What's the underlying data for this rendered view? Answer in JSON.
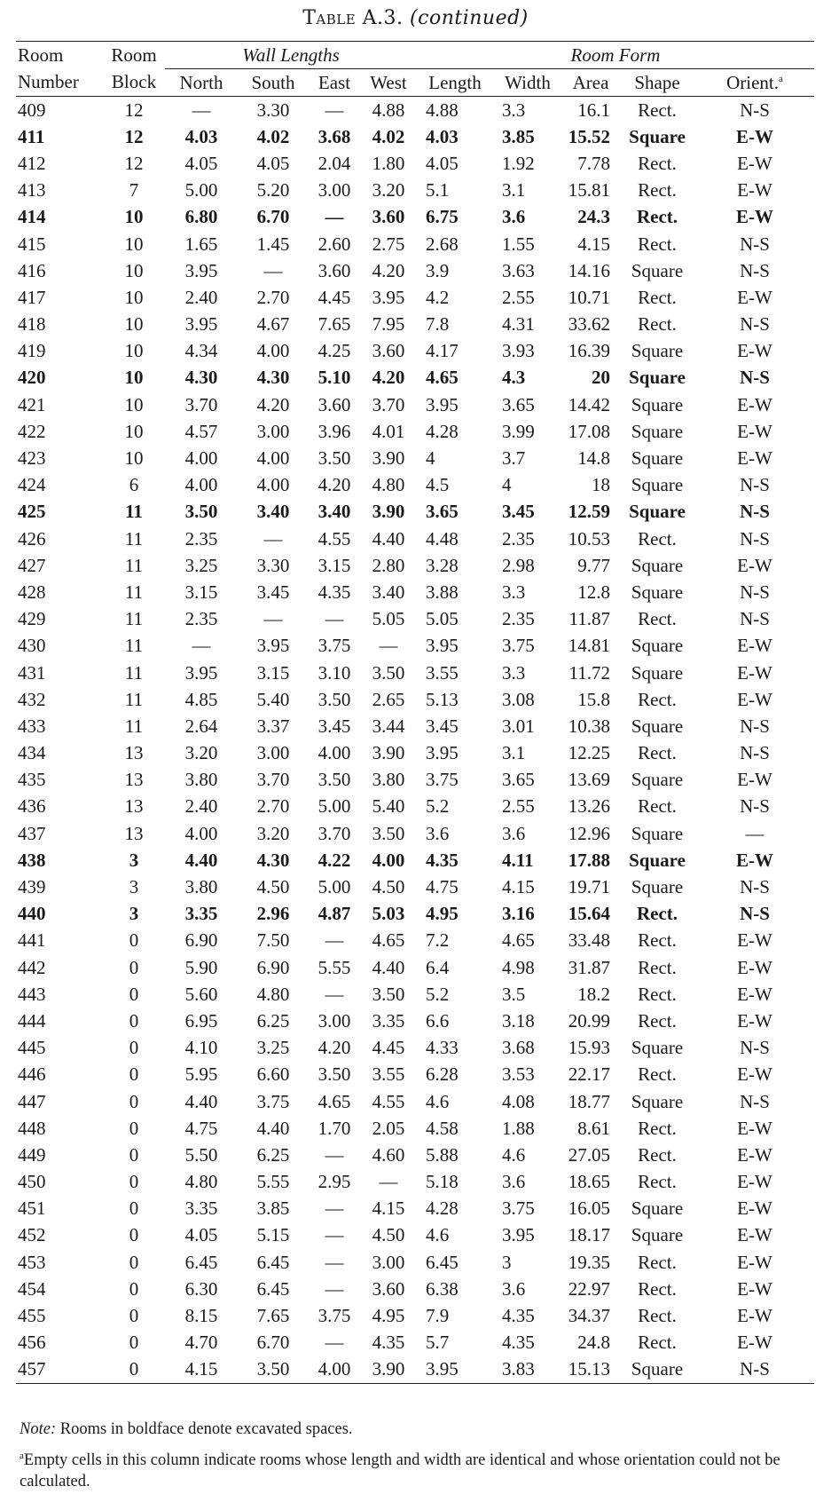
{
  "title": {
    "label": "Table A.3.",
    "continued": "(continued)"
  },
  "headers": {
    "room": "Room",
    "number": "Number",
    "block": "Block",
    "wall_group": "Wall Lengths",
    "form_group": "Room Form",
    "north": "North",
    "south": "South",
    "east": "East",
    "west": "West",
    "length": "Length",
    "width": "Width",
    "area": "Area",
    "shape": "Shape",
    "orient": "Orient.",
    "orient_mark": "a"
  },
  "rows": [
    {
      "room": "409",
      "block": "12",
      "north": "—",
      "south": "3.30",
      "east": "—",
      "west": "4.88",
      "length": "4.88",
      "width": "3.3",
      "area": "16.1",
      "shape": "Rect.",
      "orient": "N-S",
      "bold": false
    },
    {
      "room": "411",
      "block": "12",
      "north": "4.03",
      "south": "4.02",
      "east": "3.68",
      "west": "4.02",
      "length": "4.03",
      "width": "3.85",
      "area": "15.52",
      "shape": "Square",
      "orient": "E-W",
      "bold": true
    },
    {
      "room": "412",
      "block": "12",
      "north": "4.05",
      "south": "4.05",
      "east": "2.04",
      "west": "1.80",
      "length": "4.05",
      "width": "1.92",
      "area": "7.78",
      "shape": "Rect.",
      "orient": "E-W",
      "bold": false
    },
    {
      "room": "413",
      "block": "7",
      "north": "5.00",
      "south": "5.20",
      "east": "3.00",
      "west": "3.20",
      "length": "5.1",
      "width": "3.1",
      "area": "15.81",
      "shape": "Rect.",
      "orient": "E-W",
      "bold": false
    },
    {
      "room": "414",
      "block": "10",
      "north": "6.80",
      "south": "6.70",
      "east": "—",
      "west": "3.60",
      "length": "6.75",
      "width": "3.6",
      "area": "24.3",
      "shape": "Rect.",
      "orient": "E-W",
      "bold": true
    },
    {
      "room": "415",
      "block": "10",
      "north": "1.65",
      "south": "1.45",
      "east": "2.60",
      "west": "2.75",
      "length": "2.68",
      "width": "1.55",
      "area": "4.15",
      "shape": "Rect.",
      "orient": "N-S",
      "bold": false
    },
    {
      "room": "416",
      "block": "10",
      "north": "3.95",
      "south": "—",
      "east": "3.60",
      "west": "4.20",
      "length": "3.9",
      "width": "3.63",
      "area": "14.16",
      "shape": "Square",
      "orient": "N-S",
      "bold": false
    },
    {
      "room": "417",
      "block": "10",
      "north": "2.40",
      "south": "2.70",
      "east": "4.45",
      "west": "3.95",
      "length": "4.2",
      "width": "2.55",
      "area": "10.71",
      "shape": "Rect.",
      "orient": "E-W",
      "bold": false
    },
    {
      "room": "418",
      "block": "10",
      "north": "3.95",
      "south": "4.67",
      "east": "7.65",
      "west": "7.95",
      "length": "7.8",
      "width": "4.31",
      "area": "33.62",
      "shape": "Rect.",
      "orient": "N-S",
      "bold": false
    },
    {
      "room": "419",
      "block": "10",
      "north": "4.34",
      "south": "4.00",
      "east": "4.25",
      "west": "3.60",
      "length": "4.17",
      "width": "3.93",
      "area": "16.39",
      "shape": "Square",
      "orient": "E-W",
      "bold": false
    },
    {
      "room": "420",
      "block": "10",
      "north": "4.30",
      "south": "4.30",
      "east": "5.10",
      "west": "4.20",
      "length": "4.65",
      "width": "4.3",
      "area": "20",
      "shape": "Square",
      "orient": "N-S",
      "bold": true
    },
    {
      "room": "421",
      "block": "10",
      "north": "3.70",
      "south": "4.20",
      "east": "3.60",
      "west": "3.70",
      "length": "3.95",
      "width": "3.65",
      "area": "14.42",
      "shape": "Square",
      "orient": "E-W",
      "bold": false
    },
    {
      "room": "422",
      "block": "10",
      "north": "4.57",
      "south": "3.00",
      "east": "3.96",
      "west": "4.01",
      "length": "4.28",
      "width": "3.99",
      "area": "17.08",
      "shape": "Square",
      "orient": "E-W",
      "bold": false
    },
    {
      "room": "423",
      "block": "10",
      "north": "4.00",
      "south": "4.00",
      "east": "3.50",
      "west": "3.90",
      "length": "4",
      "width": "3.7",
      "area": "14.8",
      "shape": "Square",
      "orient": "E-W",
      "bold": false
    },
    {
      "room": "424",
      "block": "6",
      "north": "4.00",
      "south": "4.00",
      "east": "4.20",
      "west": "4.80",
      "length": "4.5",
      "width": "4",
      "area": "18",
      "shape": "Square",
      "orient": "N-S",
      "bold": false
    },
    {
      "room": "425",
      "block": "11",
      "north": "3.50",
      "south": "3.40",
      "east": "3.40",
      "west": "3.90",
      "length": "3.65",
      "width": "3.45",
      "area": "12.59",
      "shape": "Square",
      "orient": "N-S",
      "bold": true
    },
    {
      "room": "426",
      "block": "11",
      "north": "2.35",
      "south": "—",
      "east": "4.55",
      "west": "4.40",
      "length": "4.48",
      "width": "2.35",
      "area": "10.53",
      "shape": "Rect.",
      "orient": "N-S",
      "bold": false
    },
    {
      "room": "427",
      "block": "11",
      "north": "3.25",
      "south": "3.30",
      "east": "3.15",
      "west": "2.80",
      "length": "3.28",
      "width": "2.98",
      "area": "9.77",
      "shape": "Square",
      "orient": "E-W",
      "bold": false
    },
    {
      "room": "428",
      "block": "11",
      "north": "3.15",
      "south": "3.45",
      "east": "4.35",
      "west": "3.40",
      "length": "3.88",
      "width": "3.3",
      "area": "12.8",
      "shape": "Square",
      "orient": "N-S",
      "bold": false
    },
    {
      "room": "429",
      "block": "11",
      "north": "2.35",
      "south": "—",
      "east": "—",
      "west": "5.05",
      "length": "5.05",
      "width": "2.35",
      "area": "11.87",
      "shape": "Rect.",
      "orient": "N-S",
      "bold": false
    },
    {
      "room": "430",
      "block": "11",
      "north": "—",
      "south": "3.95",
      "east": "3.75",
      "west": "—",
      "length": "3.95",
      "width": "3.75",
      "area": "14.81",
      "shape": "Square",
      "orient": "E-W",
      "bold": false
    },
    {
      "room": "431",
      "block": "11",
      "north": "3.95",
      "south": "3.15",
      "east": "3.10",
      "west": "3.50",
      "length": "3.55",
      "width": "3.3",
      "area": "11.72",
      "shape": "Square",
      "orient": "E-W",
      "bold": false
    },
    {
      "room": "432",
      "block": "11",
      "north": "4.85",
      "south": "5.40",
      "east": "3.50",
      "west": "2.65",
      "length": "5.13",
      "width": "3.08",
      "area": "15.8",
      "shape": "Rect.",
      "orient": "E-W",
      "bold": false
    },
    {
      "room": "433",
      "block": "11",
      "north": "2.64",
      "south": "3.37",
      "east": "3.45",
      "west": "3.44",
      "length": "3.45",
      "width": "3.01",
      "area": "10.38",
      "shape": "Square",
      "orient": "N-S",
      "bold": false
    },
    {
      "room": "434",
      "block": "13",
      "north": "3.20",
      "south": "3.00",
      "east": "4.00",
      "west": "3.90",
      "length": "3.95",
      "width": "3.1",
      "area": "12.25",
      "shape": "Rect.",
      "orient": "N-S",
      "bold": false
    },
    {
      "room": "435",
      "block": "13",
      "north": "3.80",
      "south": "3.70",
      "east": "3.50",
      "west": "3.80",
      "length": "3.75",
      "width": "3.65",
      "area": "13.69",
      "shape": "Square",
      "orient": "E-W",
      "bold": false
    },
    {
      "room": "436",
      "block": "13",
      "north": "2.40",
      "south": "2.70",
      "east": "5.00",
      "west": "5.40",
      "length": "5.2",
      "width": "2.55",
      "area": "13.26",
      "shape": "Rect.",
      "orient": "N-S",
      "bold": false
    },
    {
      "room": "437",
      "block": "13",
      "north": "4.00",
      "south": "3.20",
      "east": "3.70",
      "west": "3.50",
      "length": "3.6",
      "width": "3.6",
      "area": "12.96",
      "shape": "Square",
      "orient": "—",
      "bold": false
    },
    {
      "room": "438",
      "block": "3",
      "north": "4.40",
      "south": "4.30",
      "east": "4.22",
      "west": "4.00",
      "length": "4.35",
      "width": "4.11",
      "area": "17.88",
      "shape": "Square",
      "orient": "E-W",
      "bold": true
    },
    {
      "room": "439",
      "block": "3",
      "north": "3.80",
      "south": "4.50",
      "east": "5.00",
      "west": "4.50",
      "length": "4.75",
      "width": "4.15",
      "area": "19.71",
      "shape": "Square",
      "orient": "N-S",
      "bold": false
    },
    {
      "room": "440",
      "block": "3",
      "north": "3.35",
      "south": "2.96",
      "east": "4.87",
      "west": "5.03",
      "length": "4.95",
      "width": "3.16",
      "area": "15.64",
      "shape": "Rect.",
      "orient": "N-S",
      "bold": true
    },
    {
      "room": "441",
      "block": "0",
      "north": "6.90",
      "south": "7.50",
      "east": "—",
      "west": "4.65",
      "length": "7.2",
      "width": "4.65",
      "area": "33.48",
      "shape": "Rect.",
      "orient": "E-W",
      "bold": false
    },
    {
      "room": "442",
      "block": "0",
      "north": "5.90",
      "south": "6.90",
      "east": "5.55",
      "west": "4.40",
      "length": "6.4",
      "width": "4.98",
      "area": "31.87",
      "shape": "Rect.",
      "orient": "E-W",
      "bold": false
    },
    {
      "room": "443",
      "block": "0",
      "north": "5.60",
      "south": "4.80",
      "east": "—",
      "west": "3.50",
      "length": "5.2",
      "width": "3.5",
      "area": "18.2",
      "shape": "Rect.",
      "orient": "E-W",
      "bold": false
    },
    {
      "room": "444",
      "block": "0",
      "north": "6.95",
      "south": "6.25",
      "east": "3.00",
      "west": "3.35",
      "length": "6.6",
      "width": "3.18",
      "area": "20.99",
      "shape": "Rect.",
      "orient": "E-W",
      "bold": false
    },
    {
      "room": "445",
      "block": "0",
      "north": "4.10",
      "south": "3.25",
      "east": "4.20",
      "west": "4.45",
      "length": "4.33",
      "width": "3.68",
      "area": "15.93",
      "shape": "Square",
      "orient": "N-S",
      "bold": false
    },
    {
      "room": "446",
      "block": "0",
      "north": "5.95",
      "south": "6.60",
      "east": "3.50",
      "west": "3.55",
      "length": "6.28",
      "width": "3.53",
      "area": "22.17",
      "shape": "Rect.",
      "orient": "E-W",
      "bold": false
    },
    {
      "room": "447",
      "block": "0",
      "north": "4.40",
      "south": "3.75",
      "east": "4.65",
      "west": "4.55",
      "length": "4.6",
      "width": "4.08",
      "area": "18.77",
      "shape": "Square",
      "orient": "N-S",
      "bold": false
    },
    {
      "room": "448",
      "block": "0",
      "north": "4.75",
      "south": "4.40",
      "east": "1.70",
      "west": "2.05",
      "length": "4.58",
      "width": "1.88",
      "area": "8.61",
      "shape": "Rect.",
      "orient": "E-W",
      "bold": false
    },
    {
      "room": "449",
      "block": "0",
      "north": "5.50",
      "south": "6.25",
      "east": "—",
      "west": "4.60",
      "length": "5.88",
      "width": "4.6",
      "area": "27.05",
      "shape": "Rect.",
      "orient": "E-W",
      "bold": false
    },
    {
      "room": "450",
      "block": "0",
      "north": "4.80",
      "south": "5.55",
      "east": "2.95",
      "west": "—",
      "length": "5.18",
      "width": "3.6",
      "area": "18.65",
      "shape": "Rect.",
      "orient": "E-W",
      "bold": false
    },
    {
      "room": "451",
      "block": "0",
      "north": "3.35",
      "south": "3.85",
      "east": "—",
      "west": "4.15",
      "length": "4.28",
      "width": "3.75",
      "area": "16.05",
      "shape": "Square",
      "orient": "E-W",
      "bold": false
    },
    {
      "room": "452",
      "block": "0",
      "north": "4.05",
      "south": "5.15",
      "east": "—",
      "west": "4.50",
      "length": "4.6",
      "width": "3.95",
      "area": "18.17",
      "shape": "Square",
      "orient": "E-W",
      "bold": false
    },
    {
      "room": "453",
      "block": "0",
      "north": "6.45",
      "south": "6.45",
      "east": "—",
      "west": "3.00",
      "length": "6.45",
      "width": "3",
      "area": "19.35",
      "shape": "Rect.",
      "orient": "E-W",
      "bold": false
    },
    {
      "room": "454",
      "block": "0",
      "north": "6.30",
      "south": "6.45",
      "east": "—",
      "west": "3.60",
      "length": "6.38",
      "width": "3.6",
      "area": "22.97",
      "shape": "Rect.",
      "orient": "E-W",
      "bold": false
    },
    {
      "room": "455",
      "block": "0",
      "north": "8.15",
      "south": "7.65",
      "east": "3.75",
      "west": "4.95",
      "length": "7.9",
      "width": "4.35",
      "area": "34.37",
      "shape": "Rect.",
      "orient": "E-W",
      "bold": false
    },
    {
      "room": "456",
      "block": "0",
      "north": "4.70",
      "south": "6.70",
      "east": "—",
      "west": "4.35",
      "length": "5.7",
      "width": "4.35",
      "area": "24.8",
      "shape": "Rect.",
      "orient": "E-W",
      "bold": false
    },
    {
      "room": "457",
      "block": "0",
      "north": "4.15",
      "south": "3.50",
      "east": "4.00",
      "west": "3.90",
      "length": "3.95",
      "width": "3.83",
      "area": "15.13",
      "shape": "Square",
      "orient": "N-S",
      "bold": false
    }
  ],
  "notes": {
    "note_label": "Note:",
    "note_text": "Rooms in boldface denote excavated spaces.",
    "footnote_mark": "a",
    "footnote_text": "Empty cells in this column indicate rooms whose length and width are identical and whose orientation could not be calculated."
  }
}
